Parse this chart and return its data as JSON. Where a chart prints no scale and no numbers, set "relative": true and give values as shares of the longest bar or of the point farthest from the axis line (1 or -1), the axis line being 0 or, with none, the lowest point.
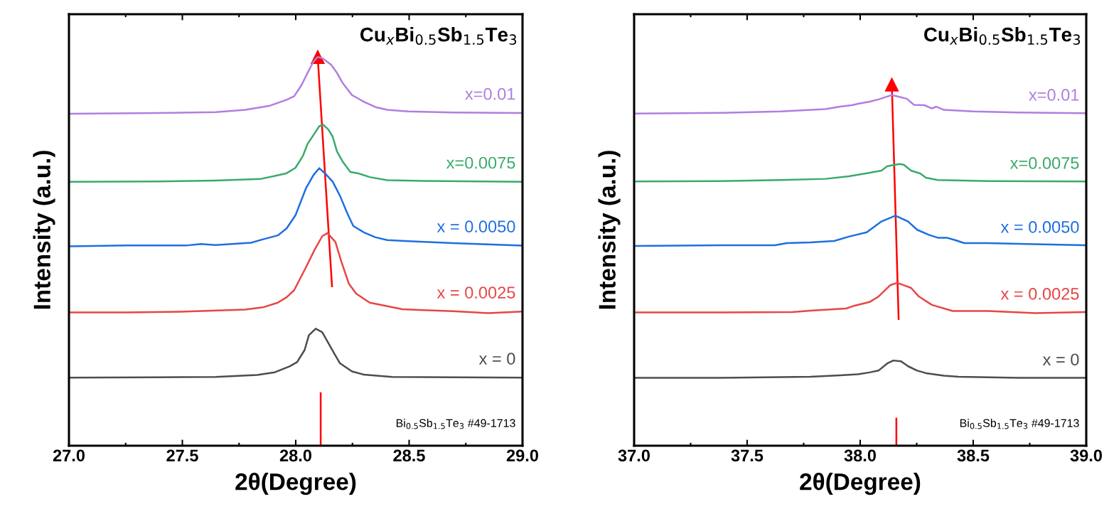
{
  "chart_data": [
    {
      "type": "line",
      "title": "Cu$_{x}$Bi$_{0.5}$Sb$_{1.5}$Te$_{3}$",
      "xlabel": "2θ(Degree)",
      "ylabel": "Intensity (a.u.)",
      "relative": true,
      "tick_labels": "x",
      "xlim": [
        27,
        29
      ],
      "xticks": [
        {
          "value": 27,
          "label": "27.0"
        },
        {
          "value": 27.5,
          "label": "27.5"
        },
        {
          "value": 28,
          "label": "28.0"
        },
        {
          "value": 28.5,
          "label": "28.5"
        },
        {
          "value": 29,
          "label": "29.0"
        }
      ],
      "annotations": [
        "Bi$_{0.5}$Sb$_{1.5}$Te$_{3}$ #49-1713"
      ],
      "series": [
        {
          "name": "x = 0",
          "color": "#4d4d4d",
          "x": [
            27.007,
            27.386,
            27.647,
            27.83,
            27.908,
            27.973,
            28.006,
            28.039,
            28.058,
            28.088,
            28.117,
            28.143,
            28.169,
            28.195,
            28.248,
            28.3,
            28.424,
            28.692,
            28.999
          ],
          "values": [
            0.175,
            0.176,
            0.177,
            0.182,
            0.189,
            0.204,
            0.215,
            0.246,
            0.284,
            0.301,
            0.292,
            0.265,
            0.238,
            0.212,
            0.191,
            0.183,
            0.177,
            0.176,
            0.175
          ]
        },
        {
          "name": "x = 0.0025",
          "color": "#e84545",
          "x": [
            27.007,
            27.255,
            27.516,
            27.777,
            27.856,
            27.921,
            27.96,
            27.993,
            28.045,
            28.084,
            28.117,
            28.14,
            28.175,
            28.201,
            28.234,
            28.267,
            28.326,
            28.404,
            28.47,
            28.561,
            28.692,
            28.849,
            28.999
          ],
          "values": [
            0.343,
            0.343,
            0.345,
            0.35,
            0.356,
            0.368,
            0.382,
            0.4,
            0.459,
            0.505,
            0.539,
            0.547,
            0.524,
            0.474,
            0.417,
            0.391,
            0.368,
            0.359,
            0.351,
            0.349,
            0.346,
            0.341,
            0.345
          ]
        },
        {
          "name": "x = 0.0050",
          "color": "#1f6fe0",
          "x": [
            27.007,
            27.255,
            27.516,
            27.582,
            27.647,
            27.777,
            27.803,
            27.856,
            27.921,
            27.96,
            27.999,
            28.045,
            28.078,
            28.104,
            28.13,
            28.163,
            28.195,
            28.228,
            28.254,
            28.3,
            28.352,
            28.404,
            28.496,
            28.692,
            28.999
          ],
          "values": [
            0.513,
            0.515,
            0.515,
            0.519,
            0.516,
            0.521,
            0.522,
            0.531,
            0.541,
            0.559,
            0.593,
            0.662,
            0.696,
            0.714,
            0.7,
            0.679,
            0.643,
            0.597,
            0.565,
            0.549,
            0.536,
            0.529,
            0.526,
            0.521,
            0.515
          ]
        },
        {
          "name": "x=0.0075",
          "color": "#3aaa6a",
          "x": [
            27.007,
            27.386,
            27.647,
            27.843,
            27.908,
            27.96,
            27.999,
            28.032,
            28.052,
            28.078,
            28.104,
            28.12,
            28.143,
            28.163,
            28.182,
            28.208,
            28.241,
            28.274,
            28.326,
            28.404,
            28.561,
            28.999
          ],
          "values": [
            0.679,
            0.68,
            0.682,
            0.686,
            0.694,
            0.701,
            0.715,
            0.746,
            0.776,
            0.799,
            0.822,
            0.826,
            0.814,
            0.795,
            0.757,
            0.73,
            0.704,
            0.701,
            0.691,
            0.683,
            0.681,
            0.679
          ]
        },
        {
          "name": "x=0.01",
          "color": "#b07ee0",
          "x": [
            27.007,
            27.386,
            27.647,
            27.777,
            27.882,
            27.96,
            27.993,
            28.026,
            28.052,
            28.078,
            28.097,
            28.117,
            28.156,
            28.182,
            28.208,
            28.248,
            28.3,
            28.352,
            28.404,
            28.496,
            28.692,
            28.999
          ],
          "values": [
            0.854,
            0.856,
            0.858,
            0.864,
            0.874,
            0.89,
            0.899,
            0.928,
            0.959,
            0.988,
            1.0,
            0.997,
            0.98,
            0.959,
            0.932,
            0.902,
            0.885,
            0.871,
            0.864,
            0.86,
            0.857,
            0.856
          ]
        },
        {
          "color": "#ff0000",
          "x": [
            28.11,
            28.11
          ],
          "values": [
            0,
            0.135
          ]
        },
        {
          "color": "#ff0000",
          "marker": "triangle",
          "x": [
            28.16,
            28.097
          ],
          "values": [
            0.41,
            1.0
          ]
        }
      ]
    },
    {
      "type": "line",
      "title": "Cu$_{x}$Bi$_{0.5}$Sb$_{1.5}$Te$_{3}$",
      "xlabel": "2θ(Degree)",
      "ylabel": "Intensity (a.u.)",
      "relative": true,
      "tick_labels": "x",
      "xlim": [
        37,
        39
      ],
      "xticks": [
        {
          "value": 37,
          "label": "37.0"
        },
        {
          "value": 37.5,
          "label": "37.5"
        },
        {
          "value": 38,
          "label": "38.0"
        },
        {
          "value": 38.5,
          "label": "38.5"
        },
        {
          "value": 39,
          "label": "39.0"
        }
      ],
      "annotations": [
        "Bi$_{0.5}$Sb$_{1.5}$Te$_{3}$ #49-1713"
      ],
      "series": [
        {
          "name": "x = 0",
          "color": "#4d4d4d",
          "x": [
            37.007,
            37.387,
            37.78,
            37.911,
            37.99,
            38.042,
            38.081,
            38.12,
            38.147,
            38.18,
            38.212,
            38.252,
            38.291,
            38.37,
            38.435,
            38.697,
            38.996
          ],
          "values": [
            0.188,
            0.188,
            0.191,
            0.195,
            0.198,
            0.203,
            0.208,
            0.228,
            0.236,
            0.234,
            0.22,
            0.208,
            0.201,
            0.194,
            0.191,
            0.188,
            0.188
          ]
        },
        {
          "name": "x = 0.0025",
          "color": "#e84545",
          "x": [
            37.007,
            37.387,
            37.701,
            37.78,
            37.937,
            37.976,
            38.042,
            38.081,
            38.134,
            38.164,
            38.225,
            38.258,
            38.317,
            38.409,
            38.566,
            38.776,
            38.996
          ],
          "values": [
            0.369,
            0.369,
            0.37,
            0.374,
            0.38,
            0.388,
            0.398,
            0.413,
            0.445,
            0.451,
            0.437,
            0.414,
            0.39,
            0.373,
            0.373,
            0.367,
            0.37
          ]
        },
        {
          "name": "x = 0.0050",
          "color": "#1f6fe0",
          "x": [
            37.007,
            37.387,
            37.623,
            37.675,
            37.78,
            37.885,
            37.95,
            38.029,
            38.094,
            38.156,
            38.212,
            38.252,
            38.304,
            38.343,
            38.383,
            38.422,
            38.461,
            38.566,
            38.697,
            38.996
          ],
          "values": [
            0.553,
            0.555,
            0.555,
            0.561,
            0.563,
            0.567,
            0.579,
            0.591,
            0.621,
            0.637,
            0.621,
            0.598,
            0.584,
            0.576,
            0.576,
            0.569,
            0.561,
            0.561,
            0.559,
            0.555
          ]
        },
        {
          "name": "x=0.0075",
          "color": "#3aaa6a",
          "x": [
            37.007,
            37.387,
            37.649,
            37.845,
            37.95,
            38.042,
            38.094,
            38.12,
            38.147,
            38.173,
            38.193,
            38.225,
            38.265,
            38.291,
            38.343,
            38.566,
            38.996
          ],
          "values": [
            0.732,
            0.733,
            0.736,
            0.739,
            0.746,
            0.756,
            0.762,
            0.774,
            0.777,
            0.78,
            0.778,
            0.762,
            0.754,
            0.742,
            0.736,
            0.733,
            0.732
          ]
        },
        {
          "name": "x=0.01",
          "color": "#b07ee0",
          "x": [
            37.007,
            37.387,
            37.649,
            37.845,
            37.911,
            37.963,
            37.99,
            38.042,
            38.081,
            38.114,
            38.14,
            38.173,
            38.206,
            38.238,
            38.284,
            38.317,
            38.337,
            38.37,
            38.501,
            38.697,
            38.996
          ],
          "values": [
            0.92,
            0.922,
            0.926,
            0.932,
            0.939,
            0.943,
            0.947,
            0.953,
            0.959,
            0.966,
            0.971,
            0.966,
            0.961,
            0.944,
            0.943,
            0.934,
            0.939,
            0.93,
            0.926,
            0.923,
            0.921
          ]
        },
        {
          "color": "#ff0000",
          "x": [
            38.16,
            38.16
          ],
          "values": [
            0,
            0.075
          ]
        },
        {
          "color": "#ff0000",
          "marker": "triangle",
          "x": [
            38.17,
            38.14
          ],
          "values": [
            0.351,
            1.0
          ]
        }
      ]
    }
  ]
}
